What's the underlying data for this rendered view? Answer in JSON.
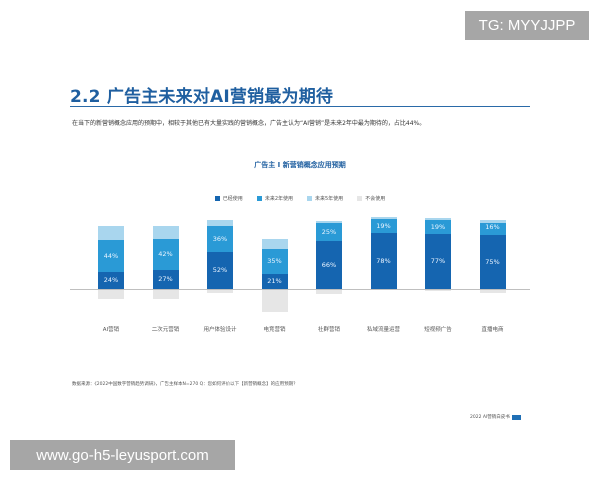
{
  "header": {
    "title": "2.2 广告主未来对AI营销最为期待",
    "subtitle": "在当下的新营销概念应用的预期中，相较于其他已有大量实践的营销概念，广告主认为“AI营销”是未来2年中最为期待的，占比44%。"
  },
  "colors": {
    "already": "#1565b0",
    "next2": "#2a9ad6",
    "next5": "#a9d6ee",
    "never": "#e6e6e6",
    "title": "#1f5fa0"
  },
  "chart_data": {
    "type": "bar",
    "stacked": true,
    "title": "广告主 I 新营销概念应用预期",
    "categories": [
      "AI营销",
      "二次元营销",
      "用户体验设计",
      "电竞营销",
      "社群营销",
      "私域流量运营",
      "短视频广告",
      "直播电商"
    ],
    "series": [
      {
        "name": "已经使用",
        "values": [
          24,
          27,
          52,
          21,
          66,
          78,
          77,
          75
        ]
      },
      {
        "name": "未来2年使用",
        "values": [
          44,
          42,
          36,
          35,
          25,
          19,
          19,
          16
        ]
      },
      {
        "name": "未来5年使用",
        "values": [
          20,
          18,
          8,
          13,
          4,
          3,
          3,
          5
        ]
      },
      {
        "name": "不会使用",
        "values": [
          12,
          13,
          4,
          31,
          5,
          0,
          1,
          4
        ]
      }
    ],
    "labels_shown": {
      "已经使用": [
        "24%",
        "27%",
        "52%",
        "21%",
        "66%",
        "78%",
        "77%",
        "75%"
      ],
      "未来2年使用": [
        "44%",
        "42%",
        "36%",
        "35%",
        "25%",
        "19%",
        "19%",
        "16%"
      ]
    },
    "legend_position": "top",
    "xlabel": "",
    "ylabel": "",
    "ylim": [
      0,
      100
    ],
    "grid": false
  },
  "legend": [
    {
      "label": "已经使用"
    },
    {
      "label": "未来2年使用"
    },
    {
      "label": "未来5年使用"
    },
    {
      "label": "不会使用"
    }
  ],
  "source": "数据来源：《2022中国数字营销趋势调研》，广告主样本N=270 Q：您如何评价以下【新营销概念】的应用预期？",
  "footer": {
    "text": "2022 AI营销白皮书",
    "page": "10"
  },
  "watermarks": {
    "tg": "TG: MYYJJPP",
    "url": "www.go-h5-leyusport.com"
  }
}
